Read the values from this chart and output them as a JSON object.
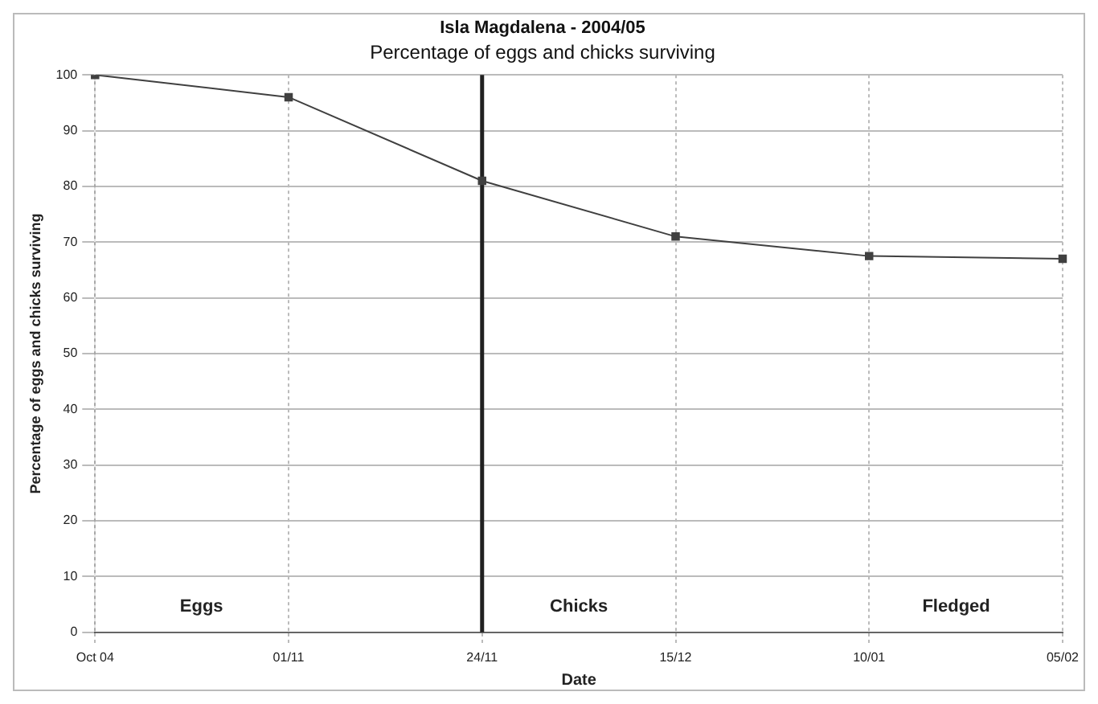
{
  "chart_data": {
    "type": "line",
    "title": "Isla Magdalena - 2004/05",
    "subtitle": "Percentage of eggs and chicks surviving",
    "xlabel": "Date",
    "ylabel": "Percentage of eggs and chicks surviving",
    "categories": [
      "Oct 04",
      "01/11",
      "24/11",
      "15/12",
      "10/01",
      "05/02"
    ],
    "series": [
      {
        "color": "#404040",
        "values": [
          100,
          96,
          81,
          71,
          67.5,
          67
        ]
      }
    ],
    "ylim": [
      0,
      100
    ],
    "yticks": [
      0,
      10,
      20,
      30,
      40,
      50,
      60,
      70,
      80,
      90,
      100
    ],
    "grid": true,
    "legend": false,
    "marker": "square",
    "line_style": "solid",
    "ref_lines": [
      {
        "axis": "x",
        "value": "24/11",
        "color": "#202020"
      }
    ],
    "annotations": [
      "Eggs",
      "Chicks",
      "Fledged"
    ]
  }
}
